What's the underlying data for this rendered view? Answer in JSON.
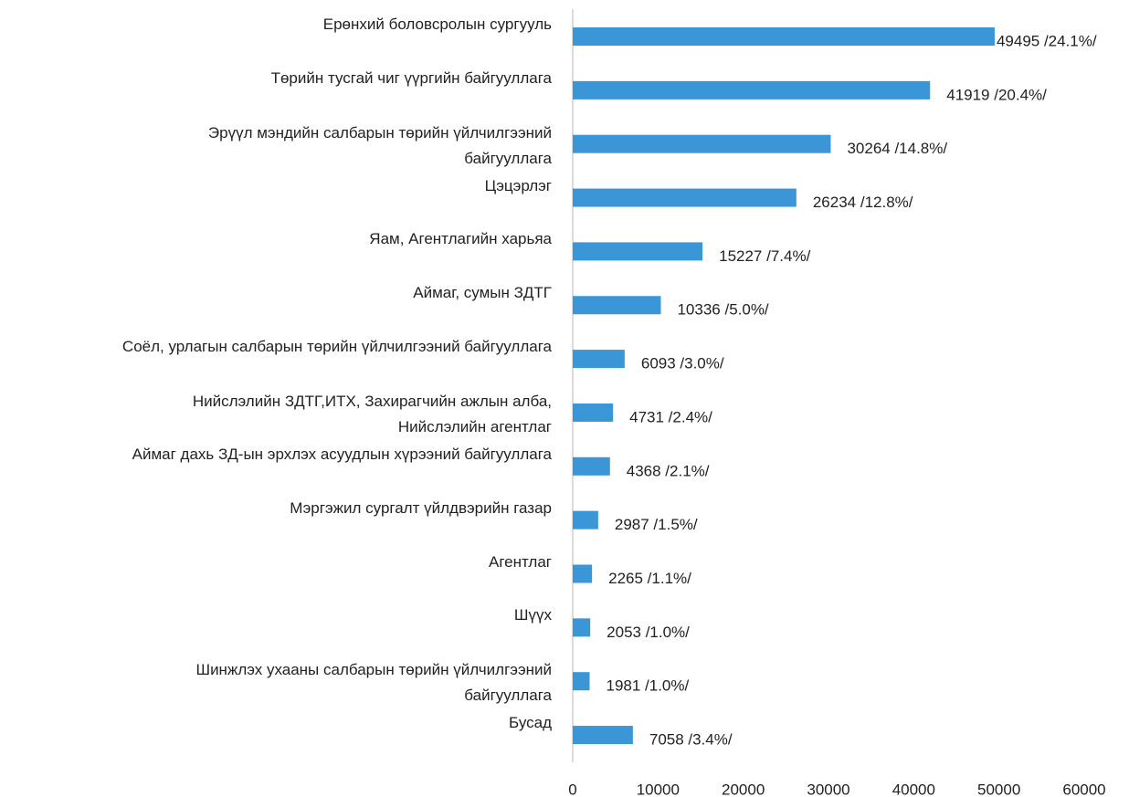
{
  "chart_data": {
    "type": "barh",
    "categories": [
      "Ерөнхий боловсролын сургууль",
      "Төрийн тусгай чиг үүргийн байгууллага",
      "Эрүүл мэндийн салбарын төрийн үйлчилгээний\nбайгууллага",
      "Цэцэрлэг",
      "Яам, Агентлагийн харьяа",
      "Аймаг, сумын ЗДТГ",
      "Соёл, урлагын салбарын төрийн үйлчилгээний байгууллага",
      "Нийслэлийн ЗДТГ,ИТХ, Захирагчийн ажлын алба,\nНийслэлийн агентлаг",
      "Аймаг дахь ЗД-ын эрхлэх асуудлын хүрээний байгууллага",
      "Мэргэжил сургалт үйлдвэрийн газар",
      "Агентлаг",
      "Шүүх",
      "Шинжлэх ухааны салбарын төрийн үйлчилгээний\nбайгууллага",
      "Бусад"
    ],
    "values": [
      49495,
      41919,
      30264,
      26234,
      15227,
      10336,
      6093,
      4731,
      4368,
      2987,
      2265,
      2053,
      1981,
      7058
    ],
    "value_labels": [
      "49495  /24.1%/",
      "41919 /20.4%/",
      "30264 /14.8%/",
      "26234 /12.8%/",
      "15227 /7.4%/",
      "10336 /5.0%/",
      "6093 /3.0%/",
      "4731 /2.4%/",
      "4368 /2.1%/",
      "2987 /1.5%/",
      "2265 /1.1%/",
      "2053 /1.0%/",
      "1981 /1.0%/",
      "7058 /3.4%/"
    ],
    "color": "#3a96d6",
    "xlim": [
      0,
      60000
    ],
    "xticks": [
      0,
      10000,
      20000,
      30000,
      40000,
      50000,
      60000
    ],
    "grid": false
  }
}
